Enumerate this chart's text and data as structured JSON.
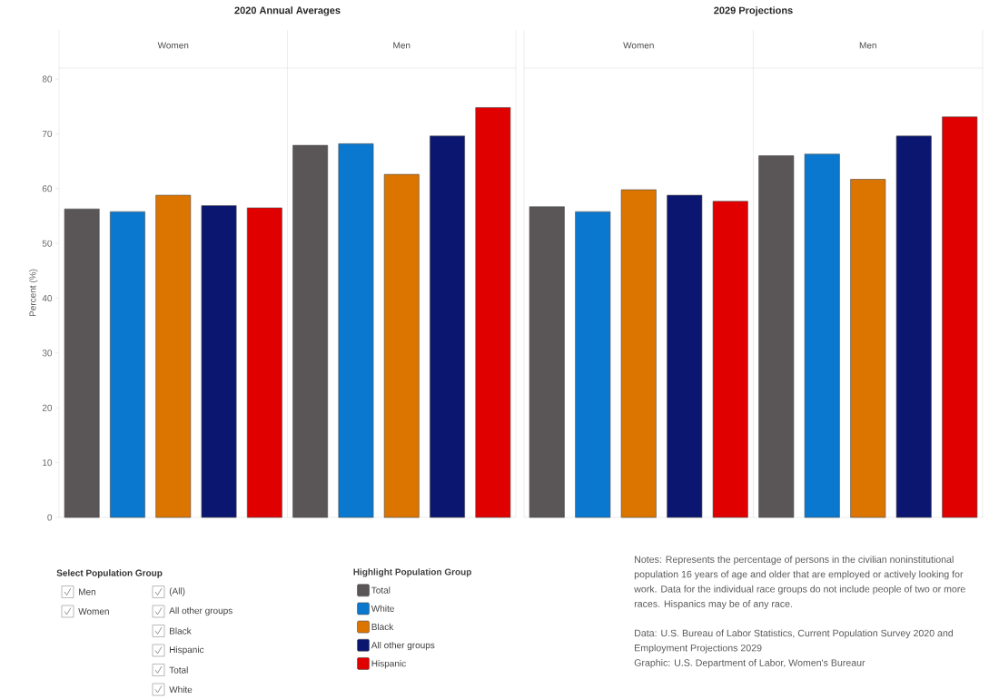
{
  "chart_data": [
    {
      "type": "bar",
      "title": "2020 Annual Averages",
      "ylabel": "Percent (%)",
      "categories": [
        "Women",
        "Men"
      ],
      "series": [
        {
          "name": "Total",
          "color": "#5a5557",
          "values": [
            56.3,
            67.9
          ]
        },
        {
          "name": "White",
          "color": "#0a78cf",
          "values": [
            55.8,
            68.2
          ]
        },
        {
          "name": "Black",
          "color": "#dc7500",
          "values": [
            58.8,
            62.6
          ]
        },
        {
          "name": "All other groups",
          "color": "#0a1670",
          "values": [
            56.9,
            69.6
          ]
        },
        {
          "name": "Hispanic",
          "color": "#e00000",
          "values": [
            56.5,
            74.8
          ]
        }
      ],
      "ylim": [
        0,
        82
      ],
      "yticks": [
        0,
        10,
        20,
        30,
        40,
        50,
        60,
        70,
        80
      ],
      "legend": "bottom",
      "legend_title": "Highlight Population Group",
      "annotations": [
        "Notes: Represents the percentage of persons in the civilian noninstitutional population 16 years of age and older that are employed or actively looking for work. Data for the individual race groups do not include people of two or more races. Hispanics may be of any race.",
        "Data: U.S. Bureau of Labor Statistics, Current Population Survey 2020 and Employment Projections 2029",
        "Graphic: U.S. Department of Labor, Women's Bureaur"
      ]
    },
    {
      "type": "bar",
      "title": "2029 Projections",
      "categories": [
        "Women",
        "Men"
      ],
      "series": [
        {
          "color": "#5a5557",
          "values": [
            56.7,
            66.0
          ]
        },
        {
          "color": "#0a78cf",
          "values": [
            55.8,
            66.3
          ]
        },
        {
          "color": "#dc7500",
          "values": [
            59.8,
            61.7
          ]
        },
        {
          "color": "#0a1670",
          "values": [
            58.8,
            69.6
          ]
        },
        {
          "color": "#e00000",
          "values": [
            57.7,
            73.1
          ]
        }
      ],
      "ylim": [
        0,
        82
      ],
      "tick_labels": "x"
    },
    {
      "type": "other",
      "title": "Select Population Group",
      "annotations": [
        "Men",
        "Women",
        "(All)",
        "All other groups",
        "Black",
        "Hispanic",
        "Total",
        "White"
      ]
    }
  ]
}
